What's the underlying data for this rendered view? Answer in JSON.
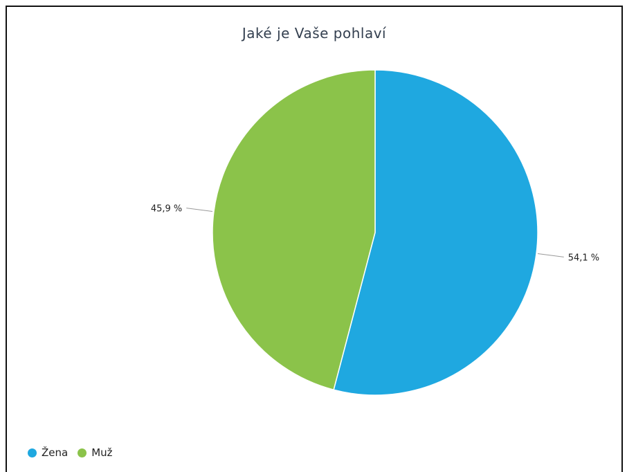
{
  "chart_data": {
    "type": "pie",
    "title": "Jaké je Vaše pohlaví",
    "slices": [
      {
        "name": "Žena",
        "value": 54.1,
        "label": "54,1 %",
        "color": "#1fa8e0"
      },
      {
        "name": "Muž",
        "value": 45.9,
        "label": "45,9 %",
        "color": "#8bc34a"
      }
    ],
    "legend": {
      "position": "bottom-left",
      "items": [
        "Žena",
        "Muž"
      ]
    }
  }
}
